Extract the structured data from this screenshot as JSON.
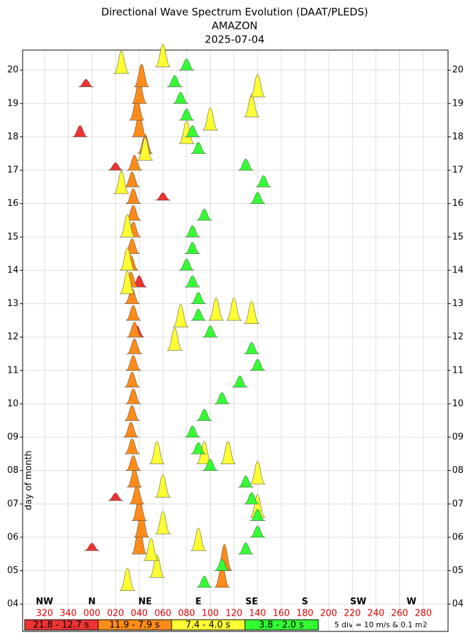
{
  "chart_data": {
    "type": "wave-spectrum",
    "title": "Directional Wave Spectrum Evolution (DAAT/PLEDS)",
    "subtitle": "AMAZON",
    "date": "2025-07-04",
    "ylabel": "day of month",
    "note": "5 div = 10 m/s & 0.1 m2",
    "grid": true,
    "xlim": [
      -58.5,
      300.9
    ],
    "ylim": [
      3.18,
      20.6
    ],
    "xticks": [
      {
        "value": -40,
        "label": "320"
      },
      {
        "value": -20,
        "label": "340"
      },
      {
        "value": 0,
        "label": "000"
      },
      {
        "value": 20,
        "label": "020"
      },
      {
        "value": 40,
        "label": "040"
      },
      {
        "value": 60,
        "label": "060"
      },
      {
        "value": 80,
        "label": "080"
      },
      100,
      120,
      140,
      160,
      180,
      200,
      220,
      240,
      260,
      280
    ],
    "yticks": [
      {
        "value": 4,
        "label": "04"
      },
      {
        "value": 5,
        "label": "05"
      },
      {
        "value": 6,
        "label": "06"
      },
      {
        "value": 7,
        "label": "07"
      },
      {
        "value": 8,
        "label": "08"
      },
      {
        "value": 9,
        "label": "09"
      },
      10,
      11,
      12,
      13,
      14,
      15,
      16,
      17,
      18,
      19,
      20
    ],
    "compass": [
      {
        "value": -40,
        "label": "NW"
      },
      {
        "value": 0,
        "label": "N"
      },
      {
        "value": 45,
        "label": "NE"
      },
      {
        "value": 90,
        "label": "E"
      },
      {
        "value": 135,
        "label": "SE"
      },
      {
        "value": 180,
        "label": "S"
      },
      {
        "value": 225,
        "label": "SW"
      },
      {
        "value": 270,
        "label": "W"
      }
    ],
    "series": [
      {
        "name": "21.8 - 12.7 s",
        "color": "#ee3333",
        "days": [
          5.6,
          7.1,
          11,
          12,
          13.5,
          16.1,
          17,
          18,
          19.5
        ],
        "directions": [
          0,
          20,
          35,
          38,
          40,
          60,
          20,
          -10,
          -5
        ],
        "sizes": [
          0.2,
          0.2,
          0.2,
          0.3,
          0.3,
          0.2,
          0.2,
          0.3,
          0.2
        ]
      },
      {
        "name": "11.9 - 7.9 s",
        "color": "#ff8c1a",
        "days": [
          4.5,
          5,
          5.5,
          6,
          6.5,
          7,
          7.5,
          8,
          8.5,
          9,
          9.5,
          10,
          10.5,
          11,
          11.5,
          12,
          12.5,
          13,
          13.5,
          14,
          14.5,
          15,
          15.5,
          16,
          16.5,
          17,
          17.5,
          18,
          18.5,
          19,
          19.5
        ],
        "directions": [
          110,
          112,
          40,
          42,
          40,
          38,
          36,
          35,
          34,
          33,
          34,
          35,
          34,
          35,
          36,
          36,
          35,
          34,
          33,
          33,
          34,
          35,
          35,
          35,
          34,
          36,
          45,
          40,
          38,
          40,
          42
        ],
        "sizes": [
          0.6,
          0.7,
          0.8,
          0.7,
          0.6,
          0.5,
          0.5,
          0.4,
          0.4,
          0.4,
          0.4,
          0.4,
          0.4,
          0.4,
          0.4,
          0.4,
          0.4,
          0.4,
          0.4,
          0.4,
          0.4,
          0.4,
          0.4,
          0.4,
          0.4,
          0.4,
          0.5,
          0.6,
          0.6,
          0.6,
          0.6
        ]
      },
      {
        "name": "7.4 - 4.0 s",
        "color": "#ffff33",
        "days": [
          4.4,
          4.8,
          5.3,
          5.6,
          6.1,
          6.6,
          7.2,
          7.6,
          8.2,
          8.2,
          8.2,
          11.6,
          12.3,
          12.5,
          12.5,
          12.4,
          13.3,
          14,
          15,
          16.3,
          17.3,
          17.8,
          18.2,
          18.6,
          19.2,
          19.9,
          20.1
        ],
        "directions": [
          30,
          55,
          50,
          90,
          60,
          140,
          60,
          140,
          55,
          95,
          115,
          70,
          75,
          105,
          120,
          135,
          30,
          30,
          30,
          25,
          45,
          80,
          100,
          135,
          140,
          25,
          60
        ],
        "sizes": [
          0.6,
          0.6,
          0.6,
          0.6,
          0.6,
          0.6,
          0.6,
          0.6,
          0.6,
          0.6,
          0.6,
          0.6,
          0.6,
          0.6,
          0.6,
          0.6,
          0.6,
          0.6,
          0.6,
          0.6,
          0.6,
          0.6,
          0.6,
          0.6,
          0.6,
          0.6,
          0.6
        ]
      },
      {
        "name": "3.8 - 2.0 s",
        "color": "#33ff33",
        "days": [
          4.5,
          5,
          5.5,
          6,
          6.5,
          7,
          7.5,
          8,
          8.5,
          9,
          9.5,
          10,
          10.5,
          11,
          11.5,
          12,
          12.5,
          13,
          13.5,
          14,
          14.5,
          15,
          15.5,
          16,
          16.5,
          17,
          17.5,
          18,
          18.5,
          19,
          19.5,
          20
        ],
        "directions": [
          95,
          110,
          130,
          140,
          140,
          135,
          130,
          100,
          90,
          85,
          95,
          110,
          125,
          140,
          135,
          100,
          90,
          90,
          85,
          80,
          85,
          85,
          95,
          140,
          145,
          130,
          90,
          85,
          80,
          75,
          70,
          80
        ],
        "sizes": [
          0.3,
          0.3,
          0.3,
          0.3,
          0.3,
          0.3,
          0.3,
          0.3,
          0.3,
          0.3,
          0.3,
          0.3,
          0.3,
          0.3,
          0.3,
          0.3,
          0.3,
          0.3,
          0.3,
          0.3,
          0.3,
          0.3,
          0.3,
          0.3,
          0.3,
          0.3,
          0.3,
          0.3,
          0.3,
          0.3,
          0.3,
          0.3
        ]
      }
    ]
  }
}
